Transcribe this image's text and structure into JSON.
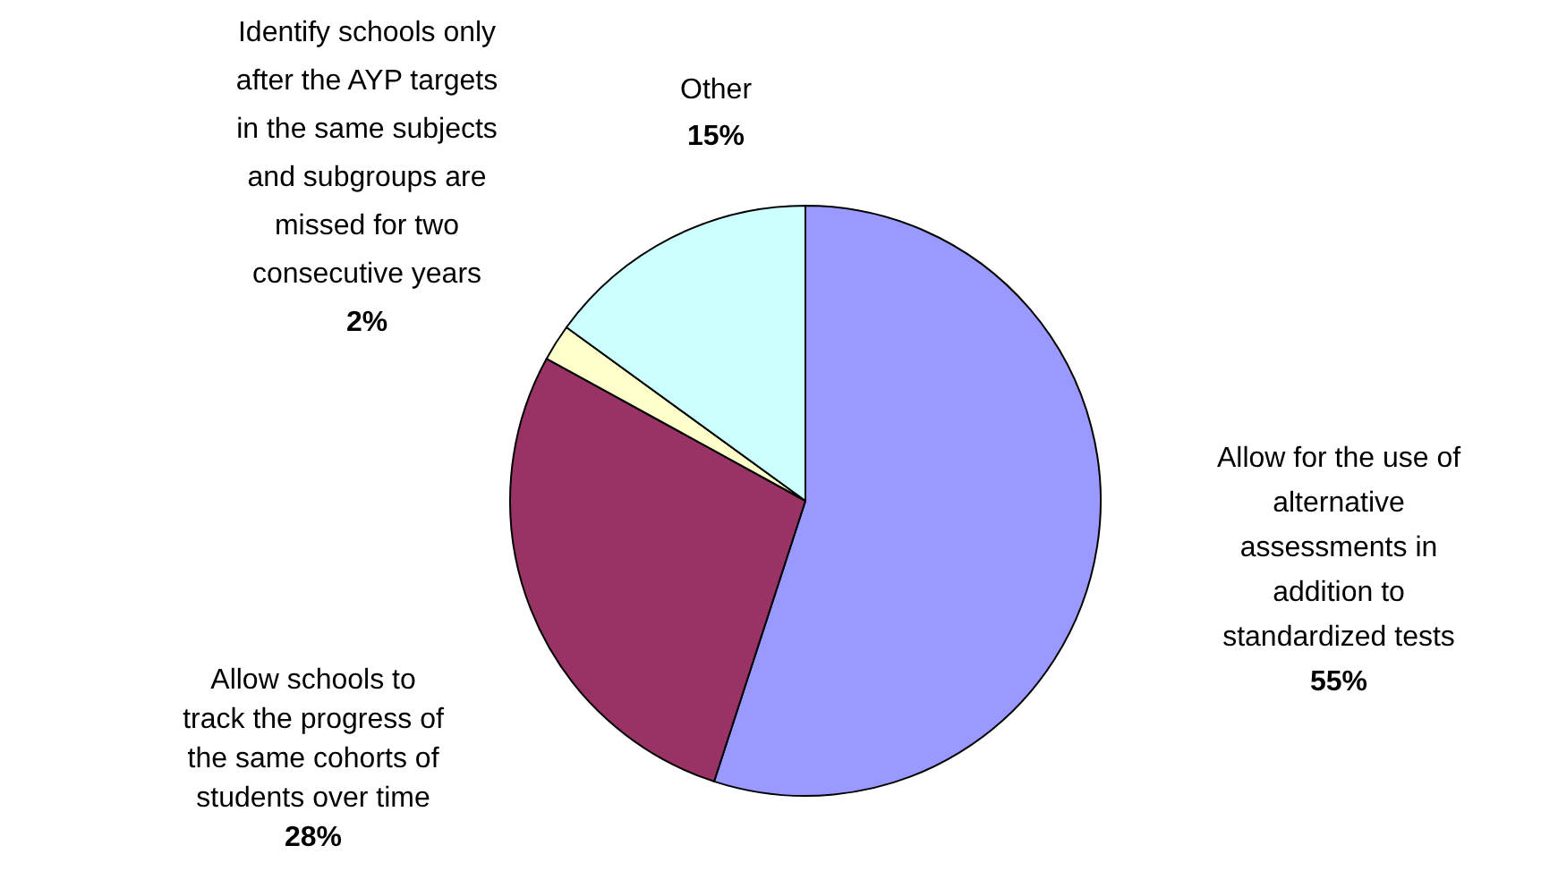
{
  "chart_data": {
    "type": "pie",
    "categories": [
      "Allow for the use of alternative assessments in addition to standardized tests",
      "Allow schools to track the progress of the same cohorts of students over time",
      "Identify schools only after the AYP targets in the same subjects and subgroups are missed for two consecutive years",
      "Other"
    ],
    "values": [
      55,
      28,
      2,
      15
    ],
    "colors": [
      "#9999ff",
      "#993366",
      "#ffffcc",
      "#ccffff"
    ],
    "value_labels": [
      "55%",
      "28%",
      "2%",
      "15%"
    ]
  }
}
